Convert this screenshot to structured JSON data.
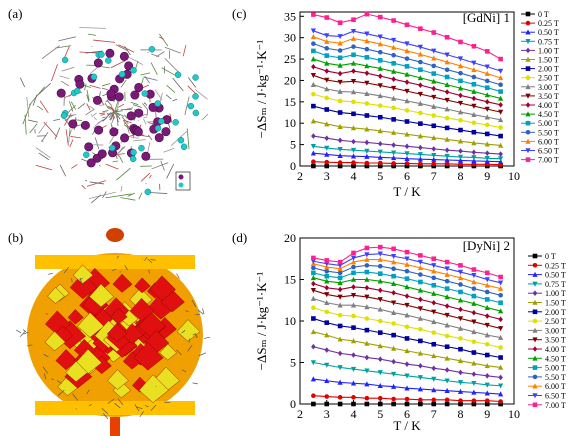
{
  "labels": {
    "a": "(a)",
    "b": "(b)",
    "c": "(c)",
    "d": "(d)"
  },
  "chart_data": [
    {
      "type": "line",
      "title": "[GdNi] 1",
      "xlabel": "T / K",
      "ylabel": "−ΔSₘ / J·kg⁻¹·K⁻¹",
      "xlim": [
        2,
        10
      ],
      "ylim": [
        0,
        36
      ],
      "xticks": [
        "2",
        "3",
        "4",
        "5",
        "6",
        "7",
        "8",
        "9",
        "10"
      ],
      "yticks": [
        "0",
        "5",
        "10",
        "15",
        "20",
        "25",
        "30",
        "35"
      ],
      "x": [
        2.5,
        3,
        3.5,
        4,
        4.5,
        5,
        5.5,
        6,
        6.5,
        7,
        7.5,
        8,
        8.5,
        9,
        9.5
      ],
      "legend_position": "right",
      "series": [
        {
          "name": "0 T",
          "color": "#000000",
          "values": [
            0,
            0,
            0,
            0,
            0,
            0,
            0,
            0,
            0,
            0,
            0,
            0,
            0,
            0,
            0
          ]
        },
        {
          "name": "0.25 T",
          "color": "#e00000",
          "values": [
            1.0,
            0.9,
            0.8,
            0.8,
            0.7,
            0.7,
            0.6,
            0.6,
            0.5,
            0.5,
            0.5,
            0.4,
            0.4,
            0.4,
            0.3
          ]
        },
        {
          "name": "0.50 T",
          "color": "#2222ff",
          "values": [
            3.0,
            2.7,
            2.4,
            2.3,
            2.2,
            2.0,
            1.9,
            1.7,
            1.6,
            1.5,
            1.4,
            1.3,
            1.2,
            1.1,
            1.0
          ]
        },
        {
          "name": "0.75 T",
          "color": "#00a0a0",
          "values": [
            4.6,
            4.2,
            3.9,
            3.7,
            3.5,
            3.3,
            3.1,
            2.9,
            2.7,
            2.5,
            2.3,
            2.1,
            2.0,
            1.8,
            1.7
          ]
        },
        {
          "name": "1.00 T",
          "color": "#7030a0",
          "values": [
            7.0,
            6.5,
            6.0,
            5.7,
            5.5,
            5.2,
            4.9,
            4.6,
            4.3,
            4.0,
            3.7,
            3.5,
            3.2,
            3.0,
            2.8
          ]
        },
        {
          "name": "1.50 T",
          "color": "#a0a000",
          "values": [
            10.5,
            9.8,
            9.2,
            8.9,
            8.6,
            8.2,
            7.8,
            7.4,
            7.0,
            6.6,
            6.2,
            5.8,
            5.4,
            5.1,
            4.8
          ]
        },
        {
          "name": "2.00 T",
          "color": "#0000a0",
          "values": [
            14.0,
            13.2,
            12.5,
            12.2,
            11.8,
            11.4,
            10.9,
            10.4,
            9.9,
            9.4,
            8.9,
            8.4,
            7.9,
            7.5,
            7.0
          ]
        },
        {
          "name": "2.50 T",
          "color": "#e0e000",
          "values": [
            16.8,
            15.9,
            15.2,
            15.0,
            14.6,
            14.1,
            13.6,
            13.0,
            12.4,
            11.8,
            11.2,
            10.7,
            10.1,
            9.6,
            9.0
          ]
        },
        {
          "name": "3.00 T",
          "color": "#808080",
          "values": [
            19.0,
            18.0,
            17.4,
            17.3,
            16.9,
            16.4,
            15.8,
            15.2,
            14.6,
            13.9,
            13.3,
            12.6,
            12.0,
            11.4,
            10.8
          ]
        },
        {
          "name": "3.50 T",
          "color": "#800000",
          "values": [
            21.2,
            20.1,
            19.6,
            19.8,
            19.4,
            18.8,
            18.2,
            17.5,
            16.8,
            16.1,
            15.4,
            14.7,
            14.0,
            13.3,
            12.6
          ]
        },
        {
          "name": "4.00 T",
          "color": "#a00030",
          "values": [
            23.2,
            22.2,
            21.6,
            22.2,
            21.7,
            21.0,
            20.3,
            19.6,
            18.9,
            18.1,
            17.3,
            16.5,
            15.8,
            15.0,
            14.3
          ]
        },
        {
          "name": "4.50 T",
          "color": "#00a000",
          "values": [
            25.0,
            24.0,
            23.5,
            24.0,
            23.4,
            22.8,
            22.1,
            21.4,
            20.6,
            19.8,
            19.0,
            18.2,
            17.4,
            16.6,
            15.8
          ]
        },
        {
          "name": "5.00 T",
          "color": "#00a0c0",
          "values": [
            26.9,
            25.8,
            25.3,
            26.0,
            25.4,
            24.7,
            24.0,
            23.3,
            22.5,
            21.6,
            20.8,
            19.9,
            19.1,
            18.3,
            17.4
          ]
        },
        {
          "name": "5.50 T",
          "color": "#3060c0",
          "values": [
            28.6,
            27.5,
            27.0,
            27.9,
            27.3,
            26.6,
            25.9,
            25.1,
            24.3,
            23.4,
            22.5,
            21.7,
            20.8,
            19.9,
            19.0
          ]
        },
        {
          "name": "6.00 T",
          "color": "#ff8000",
          "values": [
            30.2,
            29.1,
            28.7,
            29.8,
            29.2,
            28.5,
            27.7,
            26.9,
            26.1,
            25.2,
            24.3,
            23.4,
            22.5,
            21.6,
            20.6
          ]
        },
        {
          "name": "6.50 T",
          "color": "#4040ff",
          "values": [
            31.6,
            30.5,
            30.3,
            31.5,
            30.9,
            30.2,
            29.4,
            28.6,
            27.8,
            26.9,
            26.0,
            25.1,
            24.1,
            23.2,
            22.2
          ]
        },
        {
          "name": "7.00 T",
          "color": "#ff2090",
          "values": [
            35.4,
            34.7,
            33.5,
            34.2,
            35.5,
            34.8,
            34.0,
            33.0,
            32.1,
            31.2,
            30.1,
            29.0,
            28.0,
            26.8,
            25.0
          ]
        }
      ]
    },
    {
      "type": "line",
      "title": "[DyNi] 2",
      "xlabel": "T / K",
      "ylabel": "−ΔSₘ / J·kg⁻¹·K⁻¹",
      "xlim": [
        2,
        10
      ],
      "ylim": [
        0,
        20
      ],
      "xticks": [
        "2",
        "3",
        "4",
        "5",
        "6",
        "7",
        "8",
        "9",
        "10"
      ],
      "yticks": [
        "0",
        "5",
        "10",
        "15",
        "20"
      ],
      "x": [
        2.5,
        3,
        3.5,
        4,
        4.5,
        5,
        5.5,
        6,
        6.5,
        7,
        7.5,
        8,
        8.5,
        9,
        9.5
      ],
      "legend_position": "right",
      "series": [
        {
          "name": "0 T",
          "color": "#000000",
          "values": [
            0,
            0,
            0,
            0,
            0,
            0,
            0,
            0,
            0,
            0,
            0,
            0,
            0,
            0,
            0
          ]
        },
        {
          "name": "0.25 T",
          "color": "#e00000",
          "values": [
            1.0,
            0.9,
            0.8,
            0.8,
            0.7,
            0.7,
            0.6,
            0.6,
            0.5,
            0.5,
            0.5,
            0.4,
            0.4,
            0.4,
            0.3
          ]
        },
        {
          "name": "0.50 T",
          "color": "#2222ff",
          "values": [
            3.0,
            2.8,
            2.6,
            2.5,
            2.4,
            2.2,
            2.1,
            1.9,
            1.8,
            1.7,
            1.6,
            1.5,
            1.4,
            1.3,
            1.2
          ]
        },
        {
          "name": "0.75 T",
          "color": "#00a0a0",
          "values": [
            5.0,
            4.7,
            4.4,
            4.2,
            4.0,
            3.8,
            3.6,
            3.4,
            3.2,
            3.0,
            2.8,
            2.6,
            2.5,
            2.3,
            2.2
          ]
        },
        {
          "name": "1.00 T",
          "color": "#7030a0",
          "values": [
            6.9,
            6.5,
            6.1,
            5.9,
            5.6,
            5.4,
            5.1,
            4.8,
            4.6,
            4.3,
            4.1,
            3.8,
            3.6,
            3.4,
            3.2
          ]
        },
        {
          "name": "1.50 T",
          "color": "#a0a000",
          "values": [
            8.7,
            8.3,
            7.8,
            7.6,
            7.3,
            7.0,
            6.7,
            6.4,
            6.1,
            5.8,
            5.5,
            5.2,
            4.9,
            4.6,
            4.4
          ]
        },
        {
          "name": "2.00 T",
          "color": "#0000a0",
          "values": [
            10.3,
            9.8,
            9.4,
            9.2,
            8.9,
            8.6,
            8.3,
            7.9,
            7.6,
            7.2,
            6.9,
            6.6,
            6.2,
            5.9,
            5.6
          ]
        },
        {
          "name": "2.50 T",
          "color": "#e0e000",
          "values": [
            11.6,
            11.1,
            10.7,
            10.6,
            10.3,
            10.0,
            9.7,
            9.3,
            9.0,
            8.6,
            8.2,
            7.9,
            7.5,
            7.2,
            6.8
          ]
        },
        {
          "name": "3.00 T",
          "color": "#808080",
          "values": [
            12.7,
            12.2,
            11.9,
            11.9,
            11.7,
            11.4,
            11.0,
            10.7,
            10.3,
            9.9,
            9.5,
            9.1,
            8.7,
            8.3,
            8.0
          ]
        },
        {
          "name": "3.50 T",
          "color": "#800000",
          "values": [
            13.7,
            13.2,
            12.9,
            13.1,
            12.9,
            12.6,
            12.2,
            11.9,
            11.5,
            11.1,
            10.7,
            10.3,
            9.9,
            9.5,
            9.1
          ]
        },
        {
          "name": "4.00 T",
          "color": "#a00030",
          "values": [
            14.5,
            14.0,
            13.8,
            14.1,
            14.0,
            13.7,
            13.4,
            13.0,
            12.6,
            12.2,
            11.8,
            11.4,
            11.0,
            10.6,
            10.2
          ]
        },
        {
          "name": "4.50 T",
          "color": "#00a000",
          "values": [
            15.2,
            14.8,
            14.6,
            15.0,
            15.0,
            14.8,
            14.5,
            14.1,
            13.7,
            13.3,
            12.9,
            12.5,
            12.1,
            11.6,
            11.2
          ]
        },
        {
          "name": "5.00 T",
          "color": "#00a0c0",
          "values": [
            15.8,
            15.4,
            15.2,
            15.8,
            15.9,
            15.7,
            15.4,
            15.1,
            14.7,
            14.3,
            13.9,
            13.5,
            13.0,
            12.6,
            12.2
          ]
        },
        {
          "name": "5.50 T",
          "color": "#3060c0",
          "values": [
            16.4,
            16.0,
            15.8,
            16.5,
            16.7,
            16.6,
            16.3,
            16.0,
            15.6,
            15.2,
            14.8,
            14.4,
            13.9,
            13.5,
            13.1
          ]
        },
        {
          "name": "6.00 T",
          "color": "#ff8000",
          "values": [
            16.9,
            16.5,
            16.3,
            17.1,
            17.4,
            17.4,
            17.1,
            16.8,
            16.4,
            16.0,
            15.6,
            15.2,
            14.7,
            14.3,
            13.9
          ]
        },
        {
          "name": "6.50 T",
          "color": "#4040ff",
          "values": [
            17.2,
            16.9,
            16.7,
            17.6,
            18.0,
            18.1,
            17.8,
            17.5,
            17.1,
            16.7,
            16.3,
            15.9,
            15.5,
            15.0,
            14.6
          ]
        },
        {
          "name": "7.00 T",
          "color": "#ff2090",
          "values": [
            17.6,
            17.3,
            17.1,
            18.2,
            18.8,
            18.9,
            18.7,
            18.3,
            17.9,
            17.5,
            17.1,
            16.7,
            16.2,
            15.8,
            15.3
          ]
        }
      ]
    }
  ]
}
